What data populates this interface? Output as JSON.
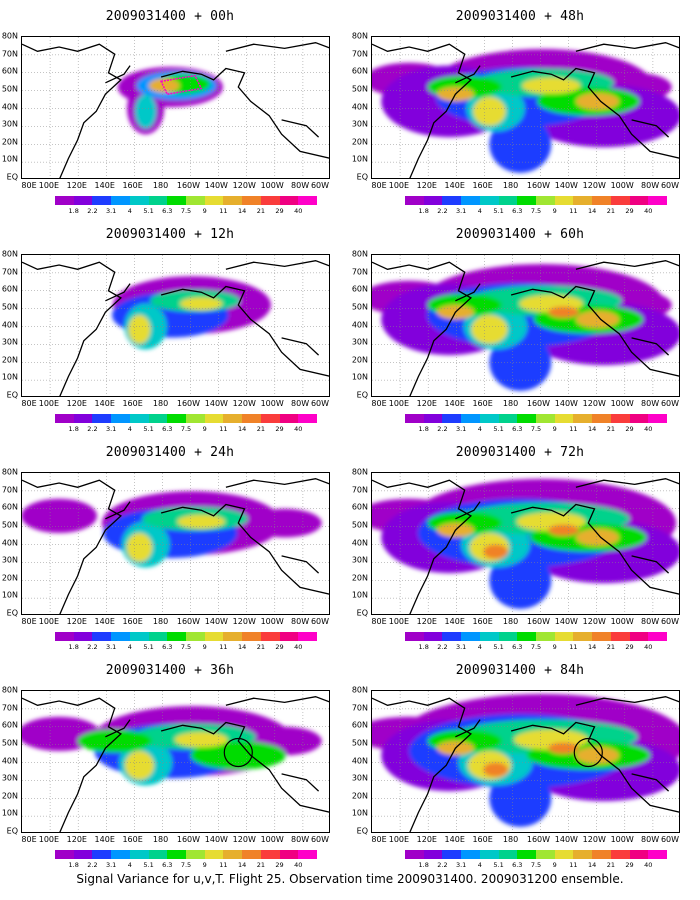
{
  "chart_data": {
    "type": "heatmap",
    "caption": "Signal Variance for u,v,T. Flight 25. Observation time 2009031400. 2009031200 ensemble.",
    "y_tick_labels": [
      "80N",
      "70N",
      "60N",
      "50N",
      "40N",
      "30N",
      "20N",
      "10N",
      "EQ"
    ],
    "x_tick_labels": [
      "80E",
      "100E",
      "120E",
      "140E",
      "160E",
      "180",
      "160W",
      "140W",
      "120W",
      "100W",
      "80W",
      "60W"
    ],
    "colorbar": {
      "labels": [
        "1.8",
        "2.2",
        "3.1",
        "4",
        "5.1",
        "6.3",
        "7.5",
        "9",
        "11",
        "14",
        "21",
        "29",
        "40"
      ],
      "colors": [
        "#a000c8",
        "#8200dc",
        "#1e3cff",
        "#0096ff",
        "#00c8c8",
        "#00d28c",
        "#00dc00",
        "#a0e632",
        "#e6dc32",
        "#e6af2d",
        "#f08228",
        "#fa3c3c",
        "#f00082",
        "#ff00c8"
      ]
    },
    "panels": [
      {
        "title": "2009031400 + 00h",
        "lead_hours": 0,
        "circle": false,
        "pink_box": true
      },
      {
        "title": "2009031400 + 48h",
        "lead_hours": 48,
        "circle": false,
        "pink_box": false
      },
      {
        "title": "2009031400 + 12h",
        "lead_hours": 12,
        "circle": false,
        "pink_box": false
      },
      {
        "title": "2009031400 + 60h",
        "lead_hours": 60,
        "circle": false,
        "pink_box": false
      },
      {
        "title": "2009031400 + 24h",
        "lead_hours": 24,
        "circle": false,
        "pink_box": false
      },
      {
        "title": "2009031400 + 72h",
        "lead_hours": 72,
        "circle": false,
        "pink_box": false
      },
      {
        "title": "2009031400 + 36h",
        "lead_hours": 36,
        "circle": true,
        "pink_box": false
      },
      {
        "title": "2009031400 + 84h",
        "lead_hours": 84,
        "circle": true,
        "pink_box": false
      }
    ]
  }
}
